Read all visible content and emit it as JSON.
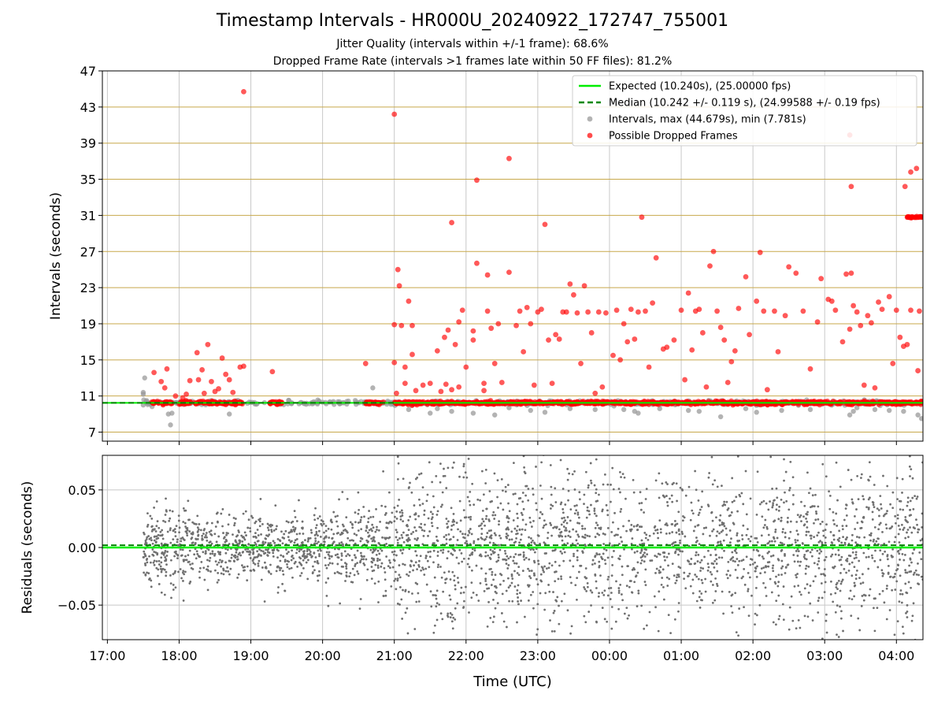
{
  "header": {
    "title": "Timestamp Intervals - HR000U_20240922_172747_755001",
    "subtitle1": "Jitter Quality (intervals within +/-1 frame): 68.6%",
    "subtitle2": "Dropped Frame Rate (intervals >1 frames late within 50 FF files): 81.2%"
  },
  "colors": {
    "expected": "#00ee00",
    "median": "#008800",
    "intervals": "#999999",
    "dropped": "#ff0000",
    "residuals": "#707070",
    "gold_grid": "#c8a84b",
    "grid": "#c8c8c8"
  },
  "chart_data": [
    {
      "type": "scatter",
      "title": "Timestamp Intervals - HR000U_20240922_172747_755001",
      "xlabel": "",
      "ylabel": "Intervals (seconds)",
      "x_axis": "time UTC, hours from 17:00 (24 = 00:00 next day)",
      "xlim": [
        16.93,
        28.37
      ],
      "ylim": [
        6.0,
        47.0
      ],
      "yticks": [
        7,
        11,
        15,
        19,
        23,
        27,
        31,
        35,
        39,
        43,
        47
      ],
      "ytick_labels": [
        "7",
        "11",
        "15",
        "19",
        "23",
        "27",
        "31",
        "35",
        "39",
        "43",
        "47"
      ],
      "xtick_labels": [
        "17:00",
        "18:00",
        "19:00",
        "20:00",
        "21:00",
        "22:00",
        "23:00",
        "00:00",
        "01:00",
        "02:00",
        "03:00",
        "04:00"
      ],
      "grid": "vertical gray lines at hour ticks; gold horizontal lines at y ticks",
      "legend_position": "top-right",
      "legend": [
        "Expected (10.240s), (25.00000 fps)",
        "Median (10.242 +/- 0.119 s), (24.99588 +/- 0.19 fps)",
        "Intervals, max (44.679s), min (7.781s)",
        "Possible Dropped Frames"
      ],
      "series": [
        {
          "name": "Expected (10.240s), (25.00000 fps)",
          "kind": "hline",
          "y": 10.24
        },
        {
          "name": "Median (10.242 +/- 0.119 s), (24.99588 +/- 0.19 fps)",
          "kind": "hline-dashed",
          "y": 10.242
        },
        {
          "name": "Intervals, max (44.679s), min (7.781s)",
          "kind": "scatter",
          "baseline": 10.24,
          "x_range": [
            17.5,
            28.37
          ],
          "max": 44.679,
          "min": 7.781,
          "low_points": [
            [
              17.52,
              13.0
            ],
            [
              17.5,
              11.4
            ],
            [
              17.5,
              11.2
            ],
            [
              17.5,
              10.0
            ],
            [
              17.85,
              9.0
            ],
            [
              17.9,
              9.1
            ],
            [
              17.88,
              7.8
            ],
            [
              18.7,
              9.0
            ],
            [
              20.7,
              11.9
            ],
            [
              21.2,
              9.5
            ],
            [
              21.5,
              9.1
            ],
            [
              21.6,
              9.6
            ],
            [
              21.8,
              9.3
            ],
            [
              22.1,
              9.1
            ],
            [
              22.4,
              8.9
            ],
            [
              22.6,
              9.7
            ],
            [
              22.9,
              9.4
            ],
            [
              23.1,
              9.2
            ],
            [
              23.45,
              9.6
            ],
            [
              23.8,
              9.5
            ],
            [
              24.2,
              9.5
            ],
            [
              24.35,
              9.3
            ],
            [
              24.4,
              9.1
            ],
            [
              24.7,
              9.6
            ],
            [
              25.1,
              9.4
            ],
            [
              25.25,
              9.3
            ],
            [
              25.55,
              8.7
            ],
            [
              25.9,
              9.6
            ],
            [
              26.05,
              9.2
            ],
            [
              26.4,
              9.4
            ],
            [
              26.8,
              9.5
            ],
            [
              27.35,
              8.9
            ],
            [
              27.4,
              9.3
            ],
            [
              27.45,
              9.7
            ],
            [
              27.7,
              9.5
            ],
            [
              27.9,
              9.4
            ],
            [
              28.1,
              9.3
            ],
            [
              28.3,
              8.9
            ],
            [
              28.35,
              8.5
            ]
          ]
        },
        {
          "name": "Possible Dropped Frames",
          "kind": "scatter",
          "band_segments": [
            [
              17.6,
              17.9
            ],
            [
              18.0,
              18.9
            ],
            [
              19.25,
              19.45
            ],
            [
              20.6,
              20.85
            ],
            [
              21.0,
              28.37
            ]
          ],
          "band_y": 10.24,
          "points": [
            [
              17.65,
              13.6
            ],
            [
              17.75,
              12.6
            ],
            [
              17.8,
              11.9
            ],
            [
              17.83,
              14.0
            ],
            [
              17.95,
              11.0
            ],
            [
              18.05,
              10.8
            ],
            [
              18.1,
              11.2
            ],
            [
              18.15,
              12.7
            ],
            [
              18.25,
              15.8
            ],
            [
              18.27,
              12.8
            ],
            [
              18.32,
              13.9
            ],
            [
              18.35,
              11.3
            ],
            [
              18.4,
              16.7
            ],
            [
              18.45,
              12.6
            ],
            [
              18.5,
              11.5
            ],
            [
              18.55,
              11.8
            ],
            [
              18.6,
              15.2
            ],
            [
              18.65,
              13.4
            ],
            [
              18.7,
              12.8
            ],
            [
              18.75,
              11.4
            ],
            [
              18.85,
              14.2
            ],
            [
              18.9,
              14.3
            ],
            [
              18.9,
              44.7
            ],
            [
              19.3,
              13.7
            ],
            [
              20.6,
              14.6
            ],
            [
              21.0,
              42.2
            ],
            [
              21.0,
              18.9
            ],
            [
              21.0,
              14.7
            ],
            [
              21.03,
              11.3
            ],
            [
              21.05,
              25.0
            ],
            [
              21.07,
              23.2
            ],
            [
              21.1,
              18.8
            ],
            [
              21.15,
              12.4
            ],
            [
              21.15,
              14.2
            ],
            [
              21.2,
              21.5
            ],
            [
              21.25,
              18.8
            ],
            [
              21.25,
              15.6
            ],
            [
              21.3,
              11.6
            ],
            [
              21.4,
              12.2
            ],
            [
              21.5,
              12.4
            ],
            [
              21.6,
              16.0
            ],
            [
              21.65,
              11.5
            ],
            [
              21.7,
              17.5
            ],
            [
              21.72,
              12.3
            ],
            [
              21.75,
              18.3
            ],
            [
              21.8,
              30.2
            ],
            [
              21.8,
              11.7
            ],
            [
              21.85,
              16.7
            ],
            [
              21.9,
              19.2
            ],
            [
              21.9,
              12.0
            ],
            [
              21.95,
              20.5
            ],
            [
              22.0,
              14.2
            ],
            [
              22.1,
              17.2
            ],
            [
              22.1,
              18.2
            ],
            [
              22.15,
              25.7
            ],
            [
              22.15,
              34.9
            ],
            [
              22.25,
              12.4
            ],
            [
              22.25,
              11.6
            ],
            [
              22.3,
              24.4
            ],
            [
              22.3,
              20.4
            ],
            [
              22.35,
              18.5
            ],
            [
              22.4,
              14.6
            ],
            [
              22.45,
              19.0
            ],
            [
              22.5,
              12.5
            ],
            [
              22.6,
              24.7
            ],
            [
              22.6,
              37.3
            ],
            [
              22.7,
              18.8
            ],
            [
              22.75,
              20.4
            ],
            [
              22.8,
              15.9
            ],
            [
              22.85,
              20.8
            ],
            [
              22.9,
              19.0
            ],
            [
              22.95,
              12.2
            ],
            [
              23.0,
              20.3
            ],
            [
              23.05,
              20.6
            ],
            [
              23.1,
              30.0
            ],
            [
              23.15,
              17.2
            ],
            [
              23.2,
              12.4
            ],
            [
              23.25,
              17.8
            ],
            [
              23.3,
              17.3
            ],
            [
              23.35,
              20.3
            ],
            [
              23.4,
              20.3
            ],
            [
              23.45,
              23.4
            ],
            [
              23.5,
              22.2
            ],
            [
              23.55,
              20.2
            ],
            [
              23.6,
              14.6
            ],
            [
              23.65,
              23.2
            ],
            [
              23.7,
              20.3
            ],
            [
              23.75,
              18.0
            ],
            [
              23.8,
              11.3
            ],
            [
              23.85,
              20.3
            ],
            [
              23.9,
              12.0
            ],
            [
              23.95,
              20.2
            ],
            [
              24.05,
              15.5
            ],
            [
              24.1,
              20.5
            ],
            [
              24.15,
              15.0
            ],
            [
              24.2,
              19.0
            ],
            [
              24.25,
              17.0
            ],
            [
              24.3,
              20.6
            ],
            [
              24.35,
              17.3
            ],
            [
              24.4,
              20.3
            ],
            [
              24.45,
              30.8
            ],
            [
              24.5,
              20.4
            ],
            [
              24.55,
              14.2
            ],
            [
              24.6,
              21.3
            ],
            [
              24.65,
              26.3
            ],
            [
              24.75,
              16.2
            ],
            [
              24.8,
              16.4
            ],
            [
              24.9,
              17.2
            ],
            [
              25.0,
              20.5
            ],
            [
              25.05,
              12.8
            ],
            [
              25.1,
              22.4
            ],
            [
              25.15,
              16.1
            ],
            [
              25.2,
              20.4
            ],
            [
              25.25,
              20.6
            ],
            [
              25.3,
              18.0
            ],
            [
              25.35,
              12.0
            ],
            [
              25.4,
              25.4
            ],
            [
              25.45,
              27.0
            ],
            [
              25.5,
              20.4
            ],
            [
              25.55,
              18.6
            ],
            [
              25.6,
              17.2
            ],
            [
              25.65,
              12.5
            ],
            [
              25.7,
              14.8
            ],
            [
              25.75,
              16.0
            ],
            [
              25.8,
              20.7
            ],
            [
              25.9,
              24.2
            ],
            [
              25.95,
              17.8
            ],
            [
              26.05,
              21.5
            ],
            [
              26.1,
              26.9
            ],
            [
              26.15,
              20.4
            ],
            [
              26.2,
              11.7
            ],
            [
              26.3,
              20.4
            ],
            [
              26.35,
              15.9
            ],
            [
              26.45,
              19.9
            ],
            [
              26.5,
              25.3
            ],
            [
              26.6,
              24.6
            ],
            [
              26.7,
              20.4
            ],
            [
              26.8,
              14.0
            ],
            [
              26.9,
              19.2
            ],
            [
              26.95,
              24.0
            ],
            [
              27.05,
              21.7
            ],
            [
              27.1,
              21.5
            ],
            [
              27.15,
              20.5
            ],
            [
              27.25,
              17.0
            ],
            [
              27.3,
              24.5
            ],
            [
              27.35,
              18.4
            ],
            [
              27.4,
              21.0
            ],
            [
              27.45,
              20.3
            ],
            [
              27.5,
              18.8
            ],
            [
              27.55,
              12.2
            ],
            [
              27.6,
              19.9
            ],
            [
              27.65,
              19.1
            ],
            [
              27.7,
              11.9
            ],
            [
              27.75,
              21.4
            ],
            [
              27.8,
              20.6
            ],
            [
              27.9,
              22.0
            ],
            [
              27.95,
              14.6
            ],
            [
              28.0,
              20.5
            ],
            [
              28.05,
              17.5
            ],
            [
              28.1,
              16.5
            ],
            [
              28.12,
              34.2
            ],
            [
              28.15,
              16.7
            ],
            [
              28.2,
              35.8
            ],
            [
              28.2,
              20.5
            ],
            [
              28.28,
              36.2
            ],
            [
              28.3,
              13.8
            ],
            [
              28.32,
              20.4
            ],
            [
              27.35,
              39.9
            ],
            [
              27.37,
              24.6
            ],
            [
              27.37,
              34.2
            ]
          ],
          "cluster_3038": [
            [
              28.15,
              28.37
            ]
          ]
        }
      ]
    },
    {
      "type": "scatter",
      "xlabel": "Time (UTC)",
      "ylabel": "Residuals (seconds)",
      "xlim": [
        16.93,
        28.37
      ],
      "ylim": [
        -0.08,
        0.08
      ],
      "yticks": [
        -0.05,
        0.0,
        0.05
      ],
      "ytick_labels": [
        "−0.05",
        "0.00",
        "0.05"
      ],
      "xtick_labels": [
        "17:00",
        "18:00",
        "19:00",
        "20:00",
        "21:00",
        "22:00",
        "23:00",
        "00:00",
        "01:00",
        "02:00",
        "03:00",
        "04:00"
      ],
      "grid": "on",
      "series": [
        {
          "kind": "hline",
          "y": 0.0
        },
        {
          "kind": "hline-dashed",
          "y": 0.002
        },
        {
          "kind": "scatter",
          "x_range": [
            17.5,
            28.37
          ],
          "spread_note": "narrow near 20:00, wide after 21:00"
        }
      ]
    }
  ]
}
